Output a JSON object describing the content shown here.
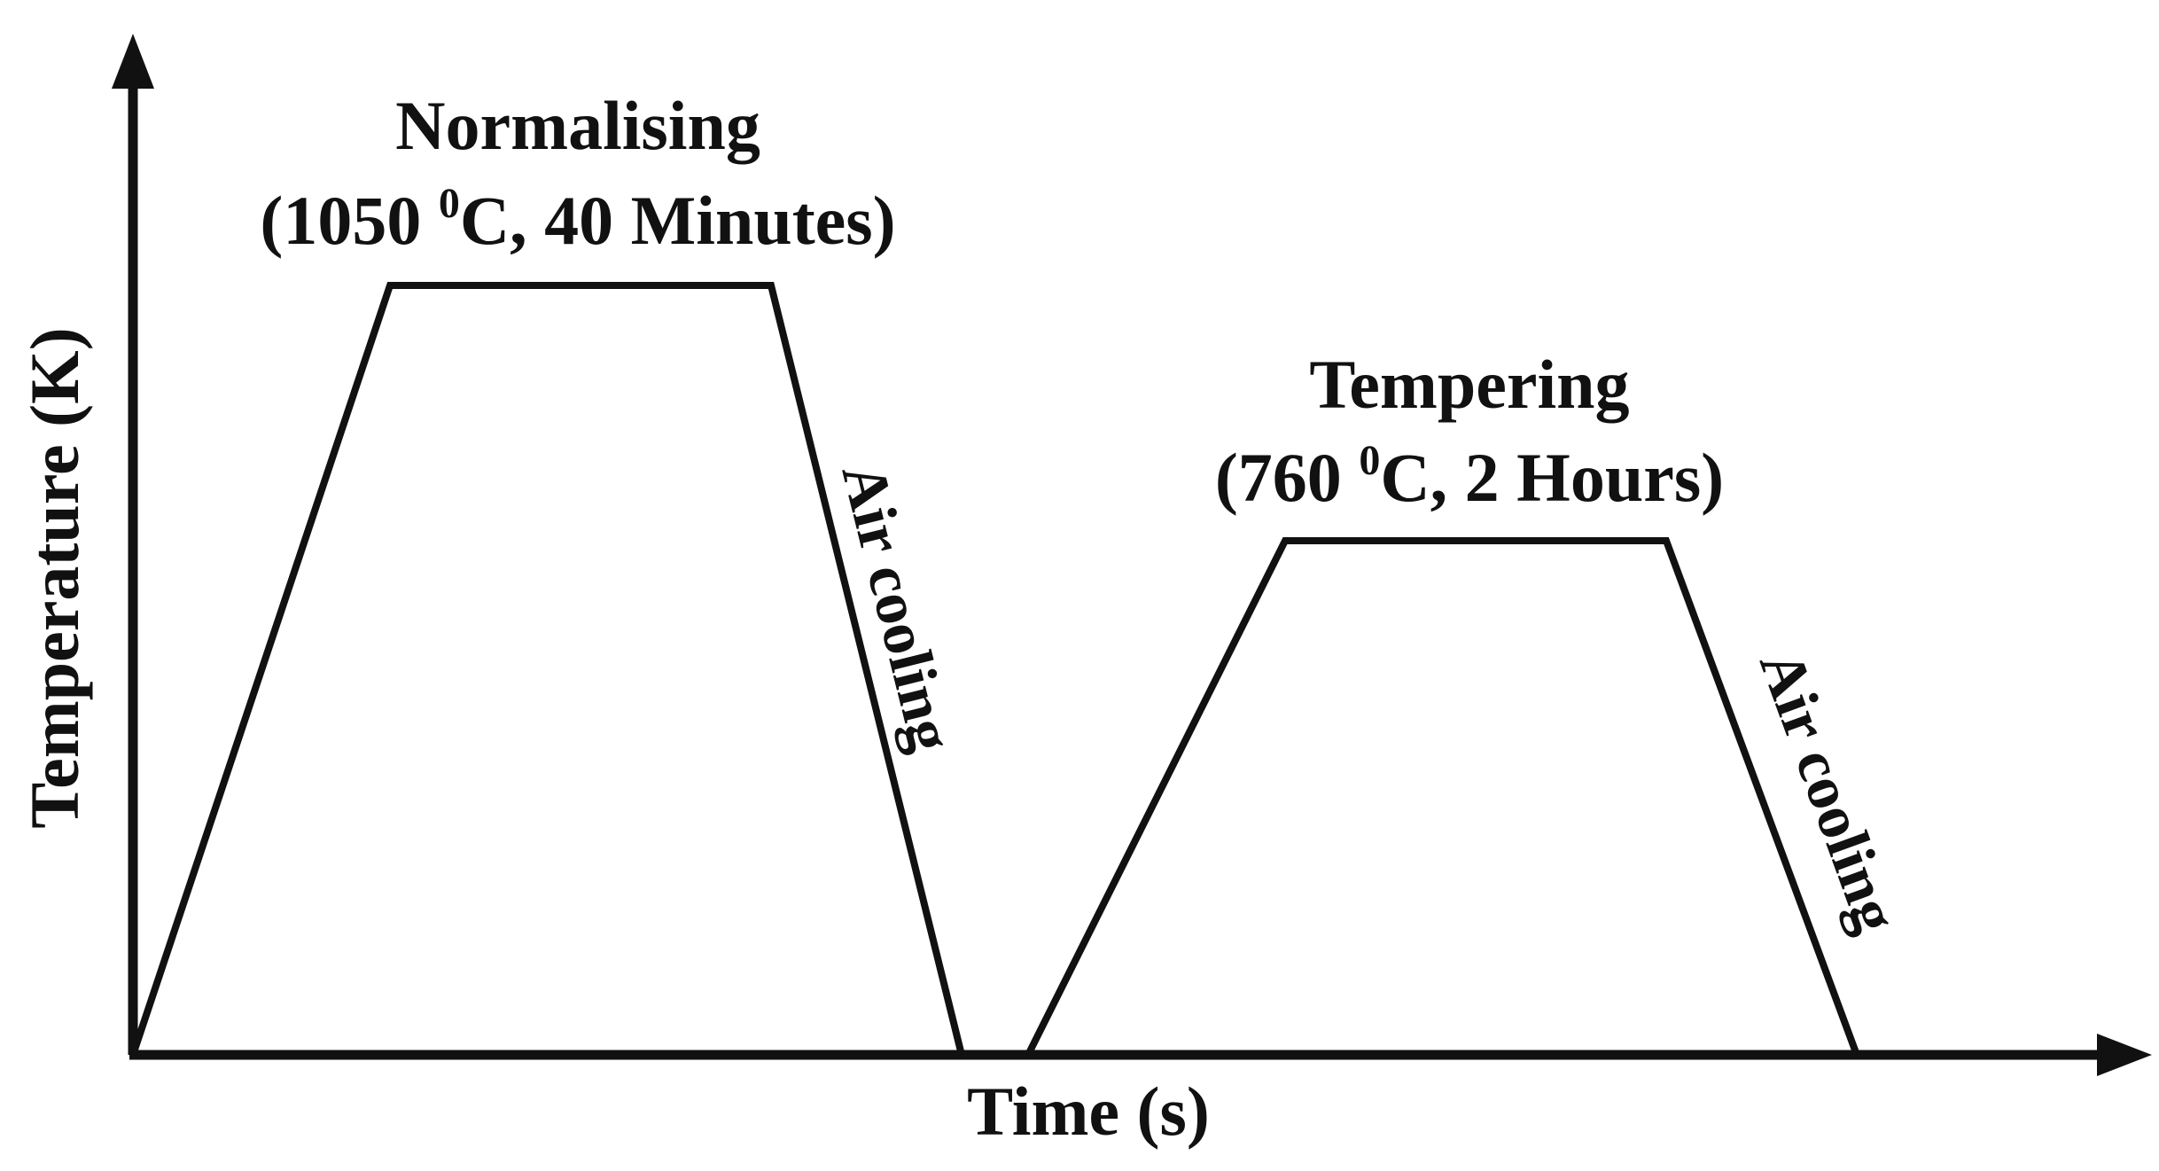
{
  "axes": {
    "y_label": "Temperature (K)",
    "x_label": "Time (s)"
  },
  "stages": [
    {
      "title": "Normalising",
      "detail_prefix": "(1050 ",
      "detail_degree": "0",
      "detail_suffix": "C, 40 Minutes)",
      "cooling_label": "Air cooling"
    },
    {
      "title": "Tempering",
      "detail_prefix": "(760 ",
      "detail_degree": "0",
      "detail_suffix": "C, 2 Hours)",
      "cooling_label": "Air cooling"
    }
  ],
  "colors": {
    "stroke": "#111111",
    "background": "#ffffff"
  }
}
